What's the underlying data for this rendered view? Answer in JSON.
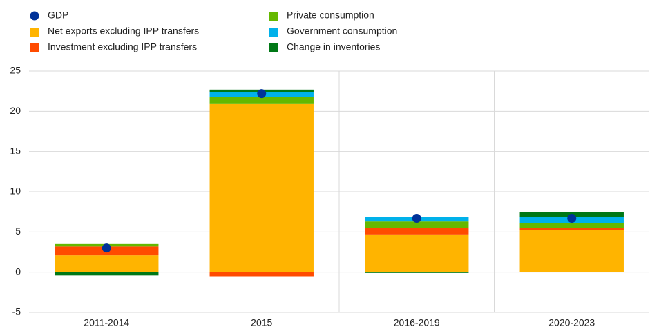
{
  "chart_data": {
    "type": "stacked_bar",
    "categories": [
      "2011-2014",
      "2015",
      "2016-2019",
      "2020-2023"
    ],
    "series": [
      {
        "name": "Net exports excluding IPP transfers",
        "color": "#ffb400",
        "values": [
          2.1,
          20.9,
          4.7,
          5.2
        ]
      },
      {
        "name": "Investment excluding IPP transfers",
        "color": "#ff4b00",
        "values": [
          1.1,
          -0.5,
          0.8,
          0.3
        ]
      },
      {
        "name": "Private consumption",
        "color": "#65b800",
        "values": [
          0.3,
          0.9,
          0.8,
          0.6
        ]
      },
      {
        "name": "Government consumption",
        "color": "#00b1ea",
        "values": [
          0,
          0.6,
          0.6,
          0.8
        ]
      },
      {
        "name": "Change in inventories",
        "color": "#007816",
        "values": [
          -0.4,
          0.3,
          -0.1,
          0.6
        ]
      }
    ],
    "gdp": {
      "name": "GDP",
      "color": "#003299",
      "values": [
        3.0,
        22.2,
        6.7,
        6.7
      ]
    },
    "ylim": [
      -5,
      25
    ],
    "yticks": [
      -5,
      0,
      5,
      10,
      15,
      20,
      25
    ],
    "grid": true
  }
}
